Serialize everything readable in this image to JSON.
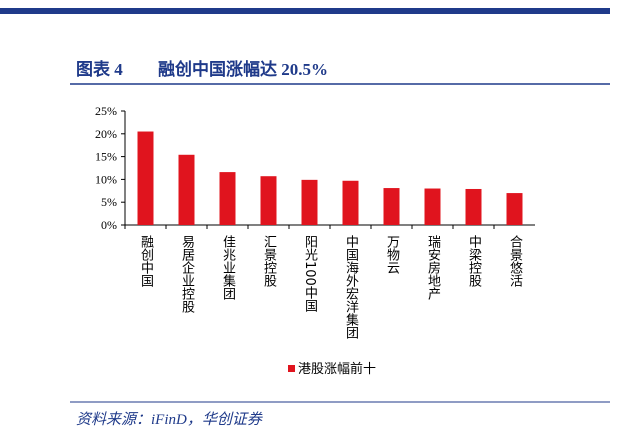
{
  "figure_label": "图表 4",
  "chart_data": {
    "type": "bar",
    "title": "融创中国涨幅达 20.5%",
    "categories": [
      "融创中国",
      "易居企业控股",
      "佳兆业集团",
      "汇景控股",
      "阳光100中国",
      "中国海外宏洋集团",
      "万物云",
      "瑞安房地产",
      "中梁控股",
      "合景悠活"
    ],
    "series": [
      {
        "name": "港股涨幅前十",
        "color": "#e0141e",
        "values": [
          20.5,
          15.4,
          11.6,
          10.7,
          9.9,
          9.7,
          8.1,
          8.0,
          7.9,
          7.0
        ]
      }
    ],
    "ylim": [
      0,
      25
    ],
    "yticks": [
      {
        "value": 0,
        "label": "0%"
      },
      {
        "value": 5,
        "label": "5%"
      },
      {
        "value": 10,
        "label": "10%"
      },
      {
        "value": 15,
        "label": "15%"
      },
      {
        "value": 20,
        "label": "20%"
      },
      {
        "value": 25,
        "label": "25%"
      }
    ],
    "grid": false,
    "legend": "bottom"
  },
  "source": "资料来源：iFinD，华创证券"
}
